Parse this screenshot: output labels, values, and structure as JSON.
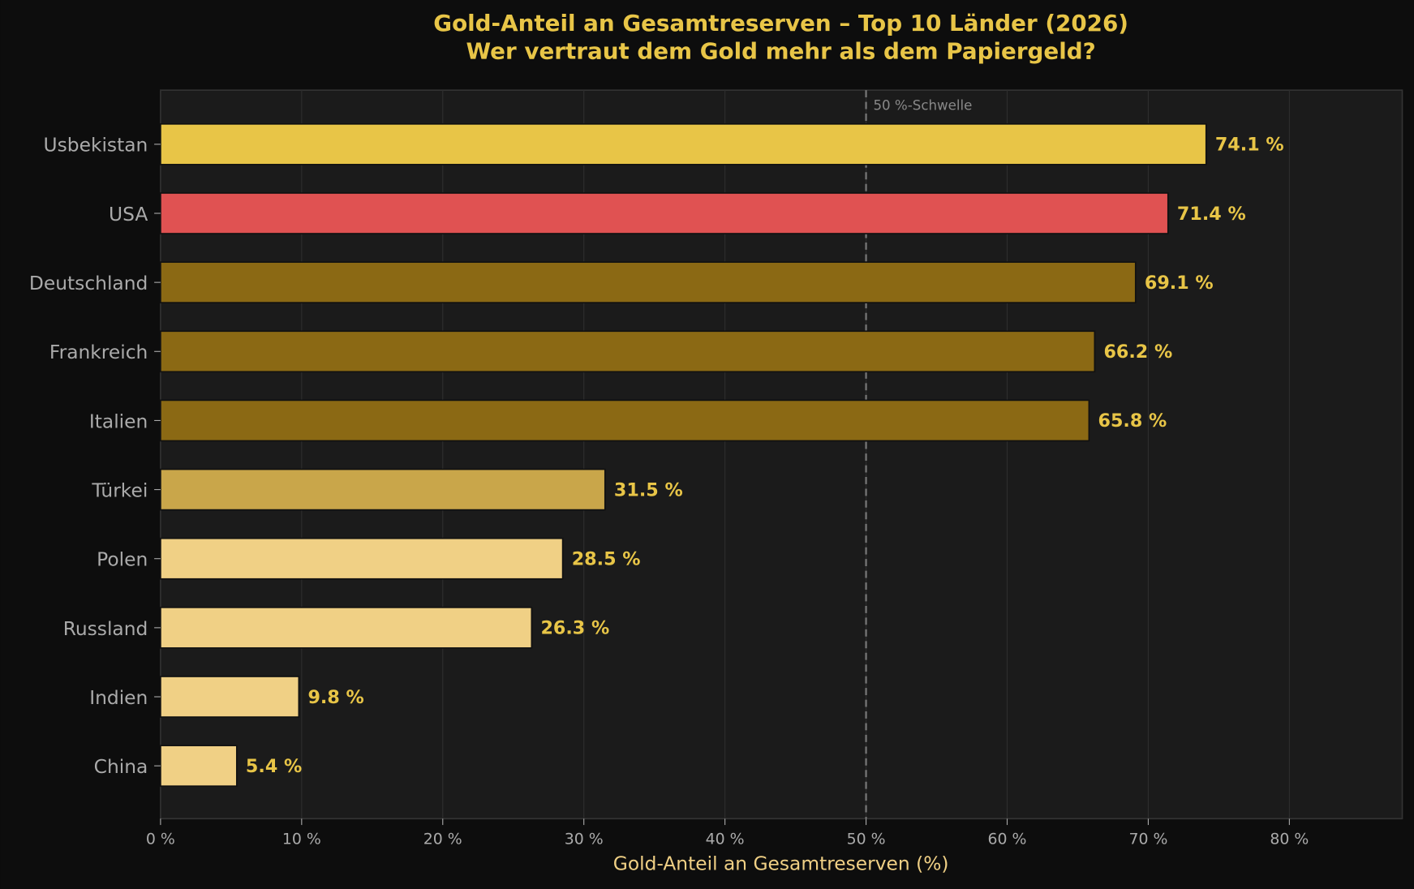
{
  "chart_data": {
    "type": "bar",
    "orientation": "horizontal",
    "title": "Gold-Anteil an Gesamtreserven – Top 10 Länder (2026)",
    "subtitle": "Wer vertraut dem Gold mehr als dem Papiergeld?",
    "xlabel": "Gold-Anteil an Gesamtreserven (%)",
    "ylabel": "",
    "xlim": [
      0,
      88
    ],
    "xticks": [
      0,
      10,
      20,
      30,
      40,
      50,
      60,
      70,
      80
    ],
    "xtick_labels": [
      "0 %",
      "10 %",
      "20 %",
      "30 %",
      "40 %",
      "50 %",
      "60 %",
      "70 %",
      "80 %"
    ],
    "grid": "vertical",
    "categories": [
      "Usbekistan",
      "USA",
      "Deutschland",
      "Frankreich",
      "Italien",
      "Türkei",
      "Polen",
      "Russland",
      "Indien",
      "China"
    ],
    "values": [
      74.1,
      71.4,
      69.1,
      66.2,
      65.8,
      31.5,
      28.5,
      26.3,
      9.8,
      5.4
    ],
    "data_labels": [
      "74.1 %",
      "71.4 %",
      "69.1 %",
      "66.2 %",
      "65.8 %",
      "31.5 %",
      "28.5 %",
      "26.3 %",
      "9.8 %",
      "5.4 %"
    ],
    "bar_colors": [
      "#e8c547",
      "#e05252",
      "#8b6914",
      "#8b6914",
      "#8b6914",
      "#c9a64a",
      "#f0d085",
      "#f0d085",
      "#f0d085",
      "#f0d085"
    ],
    "reference_line": {
      "value": 50,
      "label": "50 %-Schwelle",
      "style": "dashed"
    },
    "colors": {
      "background": "#0d0d0d",
      "plot_background": "#1b1b1b",
      "title": "#e8c547",
      "xlabel": "#f0d085",
      "tick_labels": "#aaaaaa",
      "data_labels": "#e8c547",
      "grid": "#2e2e2e"
    }
  }
}
